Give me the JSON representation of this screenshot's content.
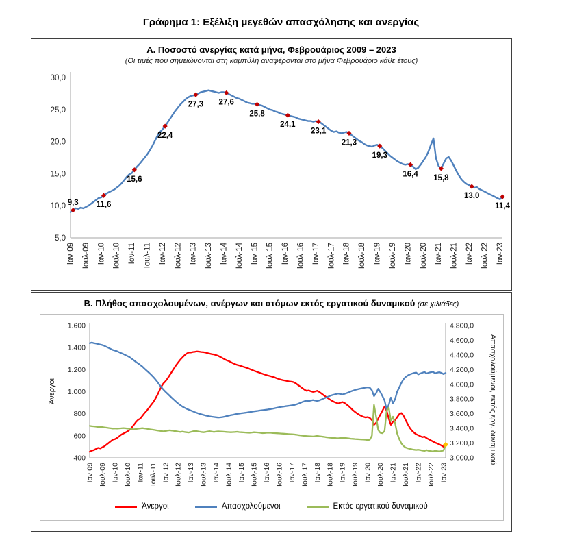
{
  "page": {
    "title": "Γράφημα 1: Εξέλιξη μεγεθών απασχόλησης και ανεργίας"
  },
  "panel_a": {
    "title": "Α. Ποσοστό ανεργίας κατά μήνα, Φεβρουάριος 2009 – 2023",
    "subtitle": "(Οι τιμές που σημειώνονται στη καμπύλη αναφέρονται στο μήνα Φεβρουάριο κάθε έτους)"
  },
  "panel_b": {
    "title": "Β. Πλήθος απασχολουμένων, ανέργων και ατόμων εκτός εργατικού δυναμικού",
    "unit_note": "(σε χιλιάδες)",
    "left_axis_title": "Άνεργοι",
    "right_axis_title": "Απασχολούμενοι, εκτός εργ. δυναμικού"
  },
  "legend": {
    "unemployed": "Άνεργοι",
    "employed": "Απασχολούμενοι",
    "outside": "Εκτός εργατικού δυναμικού"
  },
  "chart_data": [
    {
      "type": "line",
      "title": "Α. Ποσοστό ανεργίας κατά μήνα, Φεβρουάριος 2009 – 2023",
      "ylim": [
        5,
        30
      ],
      "y_tick_values": [
        5,
        10,
        15,
        20,
        25,
        30
      ],
      "y_tick_labels": [
        "5,0",
        "10,0",
        "15,0",
        "20,0",
        "25,0",
        "30,0"
      ],
      "x_tick_labels": [
        "Ιαν-09",
        "Ιουλ-09",
        "Ιαν-10",
        "Ιουλ-10",
        "Ιαν-11",
        "Ιουλ-11",
        "Ιαν-12",
        "Ιουλ-12",
        "Ιαν-13",
        "Ιουλ-13",
        "Ιαν-14",
        "Ιουλ-14",
        "Ιαν-15",
        "Ιουλ-15",
        "Ιαν-16",
        "Ιουλ-16",
        "Ιαν-17",
        "Ιουλ-17",
        "Ιαν-18",
        "Ιουλ-18",
        "Ιαν-19",
        "Ιουλ-19",
        "Ιαν-20",
        "Ιουλ-20",
        "Ιαν-21",
        "Ιουλ-21",
        "Ιαν-22",
        "Ιουλ-22",
        "Ιαν-23"
      ],
      "x_tick_indices": [
        0,
        6,
        12,
        18,
        24,
        30,
        36,
        42,
        48,
        54,
        60,
        66,
        72,
        78,
        84,
        90,
        96,
        102,
        108,
        114,
        120,
        126,
        132,
        138,
        144,
        150,
        156,
        162,
        168
      ],
      "marker_color": "#C00000",
      "series": [
        {
          "name": "Ποσοστό ανεργίας",
          "color": "#4F81BD",
          "values": [
            9.0,
            9.3,
            9.6,
            9.5,
            9.7,
            9.6,
            9.8,
            10.0,
            10.3,
            10.6,
            10.9,
            11.2,
            11.3,
            11.6,
            11.9,
            12.1,
            12.3,
            12.5,
            12.8,
            13.1,
            13.5,
            14.0,
            14.5,
            14.9,
            15.1,
            15.6,
            16.1,
            16.5,
            17.0,
            17.5,
            18.0,
            18.6,
            19.3,
            20.1,
            20.9,
            21.5,
            21.9,
            22.4,
            23.0,
            23.6,
            24.2,
            24.8,
            25.3,
            25.8,
            26.2,
            26.6,
            26.9,
            27.1,
            27.2,
            27.3,
            27.5,
            27.7,
            27.8,
            27.9,
            28.0,
            27.9,
            27.8,
            27.7,
            27.6,
            27.7,
            27.7,
            27.6,
            27.4,
            27.2,
            27.0,
            26.8,
            26.7,
            26.5,
            26.3,
            26.1,
            26.0,
            25.9,
            25.9,
            25.8,
            25.7,
            25.6,
            25.4,
            25.2,
            25.0,
            24.9,
            24.7,
            24.6,
            24.4,
            24.3,
            24.2,
            24.1,
            24.0,
            23.9,
            23.8,
            23.6,
            23.5,
            23.4,
            23.3,
            23.2,
            23.2,
            23.1,
            23.2,
            23.1,
            22.9,
            22.6,
            22.3,
            22.0,
            21.7,
            21.5,
            21.6,
            21.4,
            21.3,
            21.4,
            21.5,
            21.3,
            21.0,
            20.7,
            20.4,
            20.1,
            19.9,
            19.6,
            19.4,
            19.3,
            19.2,
            19.4,
            19.5,
            19.3,
            19.0,
            18.6,
            18.2,
            17.8,
            17.5,
            17.2,
            16.9,
            16.7,
            16.5,
            16.4,
            16.5,
            16.4,
            16.1,
            15.7,
            15.9,
            16.4,
            17.0,
            17.6,
            18.4,
            19.5,
            20.5,
            17.4,
            16.2,
            15.8,
            16.6,
            17.4,
            17.6,
            17.0,
            16.2,
            15.4,
            14.7,
            14.1,
            13.7,
            13.4,
            13.2,
            13.0,
            12.8,
            12.9,
            12.6,
            12.4,
            12.2,
            12.0,
            11.8,
            11.6,
            11.4,
            11.2,
            11.0,
            11.4
          ]
        }
      ],
      "annotations": [
        {
          "index": 1,
          "value": 9.3,
          "label": "9,3"
        },
        {
          "index": 13,
          "value": 11.6,
          "label": "11,6"
        },
        {
          "index": 25,
          "value": 15.6,
          "label": "15,6"
        },
        {
          "index": 37,
          "value": 22.4,
          "label": "22,4"
        },
        {
          "index": 49,
          "value": 27.3,
          "label": "27,3"
        },
        {
          "index": 61,
          "value": 27.6,
          "label": "27,6"
        },
        {
          "index": 73,
          "value": 25.8,
          "label": "25,8"
        },
        {
          "index": 85,
          "value": 24.1,
          "label": "24,1"
        },
        {
          "index": 97,
          "value": 23.1,
          "label": "23,1"
        },
        {
          "index": 109,
          "value": 21.3,
          "label": "21,3"
        },
        {
          "index": 121,
          "value": 19.3,
          "label": "19,3"
        },
        {
          "index": 133,
          "value": 16.4,
          "label": "16,4"
        },
        {
          "index": 145,
          "value": 15.8,
          "label": "15,8"
        },
        {
          "index": 157,
          "value": 13.0,
          "label": "13,0"
        },
        {
          "index": 169,
          "value": 11.4,
          "label": "11,4"
        }
      ]
    },
    {
      "type": "line",
      "title": "Β. Πλήθος απασχολουμένων, ανέργων και ατόμων εκτός εργατικού δυναμικού (σε χιλιάδες)",
      "left_ylim": [
        400,
        1600
      ],
      "left_tick_values": [
        400,
        600,
        800,
        1000,
        1200,
        1400,
        1600
      ],
      "left_tick_labels": [
        "400",
        "600",
        "800",
        "1.000",
        "1.200",
        "1.400",
        "1.600"
      ],
      "right_ylim": [
        3000,
        4800
      ],
      "right_tick_values": [
        3000,
        3200,
        3400,
        3600,
        3800,
        4000,
        4200,
        4400,
        4600,
        4800
      ],
      "right_tick_labels": [
        "3.000,0",
        "3.200,0",
        "3.400,0",
        "3.600,0",
        "3.800,0",
        "4.000,0",
        "4.200,0",
        "4.400,0",
        "4.600,0",
        "4.800,0"
      ],
      "x_tick_labels": [
        "Ιαν-09",
        "Ιουλ-09",
        "Ιαν-10",
        "Ιουλ-10",
        "Ιαν-11",
        "Ιουλ-11",
        "Ιαν-12",
        "Ιουλ-12",
        "Ιαν-13",
        "Ιουλ-13",
        "Ιαν-14",
        "Ιουλ-14",
        "Ιαν-15",
        "Ιουλ-15",
        "Ιαν-16",
        "Ιουλ-16",
        "Ιαν-17",
        "Ιουλ-17",
        "Ιαν-18",
        "Ιουλ-18",
        "Ιαν-19",
        "Ιουλ-19",
        "Ιαν-20",
        "Ιουλ-20",
        "Ιαν-21",
        "Ιουλ-21",
        "Ιαν-22",
        "Ιουλ-22",
        "Ιαν-23"
      ],
      "x_tick_indices": [
        0,
        6,
        12,
        18,
        24,
        30,
        36,
        42,
        48,
        54,
        60,
        66,
        72,
        78,
        84,
        90,
        96,
        102,
        108,
        114,
        120,
        126,
        132,
        138,
        144,
        150,
        156,
        162,
        168
      ],
      "end_marker_color": "#FFC000",
      "series": [
        {
          "name": "Άνεργοι",
          "axis": "left",
          "color": "#FF0000",
          "values": [
            455,
            465,
            470,
            480,
            490,
            485,
            495,
            505,
            520,
            535,
            550,
            565,
            570,
            580,
            595,
            610,
            620,
            630,
            640,
            655,
            675,
            700,
            725,
            745,
            755,
            780,
            805,
            825,
            850,
            875,
            900,
            930,
            965,
            1005,
            1045,
            1075,
            1095,
            1120,
            1150,
            1180,
            1210,
            1240,
            1265,
            1290,
            1310,
            1330,
            1345,
            1355,
            1355,
            1360,
            1362,
            1365,
            1363,
            1360,
            1358,
            1355,
            1350,
            1345,
            1340,
            1338,
            1332,
            1325,
            1315,
            1305,
            1295,
            1285,
            1278,
            1268,
            1258,
            1250,
            1243,
            1238,
            1232,
            1226,
            1220,
            1214,
            1206,
            1198,
            1190,
            1183,
            1176,
            1170,
            1163,
            1156,
            1150,
            1145,
            1140,
            1134,
            1128,
            1120,
            1114,
            1108,
            1103,
            1100,
            1096,
            1092,
            1090,
            1085,
            1074,
            1060,
            1046,
            1032,
            1018,
            1008,
            1012,
            1004,
            998,
            1002,
            1008,
            998,
            984,
            970,
            956,
            942,
            930,
            918,
            908,
            900,
            893,
            900,
            906,
            898,
            884,
            868,
            850,
            832,
            816,
            802,
            790,
            780,
            772,
            766,
            770,
            762,
            742,
            700,
            718,
            756,
            792,
            828,
            866,
            828,
            756,
            700,
            728,
            742,
            768,
            796,
            806,
            782,
            744,
            706,
            672,
            646,
            628,
            614,
            606,
            596,
            588,
            592,
            578,
            568,
            558,
            548,
            538,
            530,
            522,
            512,
            500,
            520
          ]
        },
        {
          "name": "Απασχολούμενοι",
          "axis": "right",
          "color": "#4F81BD",
          "values": [
            4560,
            4568,
            4560,
            4555,
            4548,
            4542,
            4534,
            4524,
            4510,
            4496,
            4482,
            4468,
            4460,
            4450,
            4436,
            4424,
            4412,
            4398,
            4384,
            4368,
            4348,
            4326,
            4304,
            4284,
            4264,
            4242,
            4214,
            4188,
            4162,
            4136,
            4106,
            4074,
            4038,
            4000,
            3962,
            3928,
            3898,
            3872,
            3844,
            3816,
            3790,
            3764,
            3740,
            3718,
            3698,
            3682,
            3668,
            3656,
            3644,
            3632,
            3620,
            3610,
            3600,
            3592,
            3584,
            3576,
            3570,
            3564,
            3560,
            3556,
            3552,
            3548,
            3550,
            3554,
            3560,
            3568,
            3574,
            3580,
            3586,
            3592,
            3598,
            3602,
            3606,
            3610,
            3614,
            3618,
            3622,
            3628,
            3632,
            3636,
            3640,
            3644,
            3648,
            3652,
            3656,
            3660,
            3664,
            3670,
            3676,
            3682,
            3688,
            3694,
            3698,
            3702,
            3706,
            3710,
            3714,
            3718,
            3726,
            3736,
            3748,
            3760,
            3770,
            3778,
            3772,
            3780,
            3786,
            3780,
            3774,
            3782,
            3794,
            3806,
            3818,
            3830,
            3842,
            3852,
            3860,
            3868,
            3874,
            3868,
            3862,
            3870,
            3880,
            3892,
            3904,
            3914,
            3924,
            3932,
            3938,
            3944,
            3950,
            3956,
            3960,
            3955,
            3920,
            3840,
            3880,
            3940,
            3895,
            3840,
            3780,
            3660,
            3720,
            3820,
            3740,
            3800,
            3900,
            3960,
            4020,
            4070,
            4100,
            4120,
            4135,
            4145,
            4155,
            4160,
            4135,
            4148,
            4158,
            4168,
            4148,
            4158,
            4165,
            4170,
            4150,
            4158,
            4165,
            4155,
            4140,
            4155
          ]
        },
        {
          "name": "Εκτός εργατικού δυναμικού",
          "axis": "right",
          "color": "#9BBB59",
          "values": [
            3435,
            3430,
            3428,
            3424,
            3420,
            3422,
            3418,
            3414,
            3410,
            3406,
            3402,
            3398,
            3400,
            3398,
            3400,
            3402,
            3405,
            3402,
            3398,
            3396,
            3392,
            3388,
            3392,
            3396,
            3400,
            3404,
            3400,
            3396,
            3390,
            3386,
            3382,
            3378,
            3372,
            3368,
            3364,
            3360,
            3364,
            3370,
            3374,
            3370,
            3366,
            3362,
            3356,
            3352,
            3356,
            3352,
            3348,
            3344,
            3352,
            3360,
            3366,
            3362,
            3356,
            3352,
            3348,
            3352,
            3358,
            3362,
            3356,
            3352,
            3356,
            3360,
            3358,
            3356,
            3354,
            3352,
            3350,
            3348,
            3350,
            3352,
            3354,
            3350,
            3348,
            3346,
            3344,
            3342,
            3340,
            3344,
            3348,
            3346,
            3344,
            3340,
            3336,
            3338,
            3340,
            3342,
            3340,
            3338,
            3336,
            3334,
            3332,
            3330,
            3328,
            3326,
            3324,
            3322,
            3320,
            3318,
            3314,
            3310,
            3306,
            3302,
            3298,
            3296,
            3294,
            3292,
            3290,
            3294,
            3298,
            3294,
            3290,
            3286,
            3282,
            3278,
            3274,
            3272,
            3270,
            3268,
            3266,
            3270,
            3272,
            3270,
            3268,
            3264,
            3260,
            3258,
            3256,
            3254,
            3252,
            3250,
            3248,
            3246,
            3242,
            3246,
            3300,
            3720,
            3560,
            3380,
            3340,
            3335,
            3365,
            3640,
            3685,
            3500,
            3560,
            3470,
            3330,
            3255,
            3195,
            3160,
            3140,
            3130,
            3122,
            3116,
            3110,
            3106,
            3110,
            3104,
            3098,
            3094,
            3104,
            3094,
            3090,
            3086,
            3096,
            3090,
            3086,
            3092,
            3100,
            3180
          ]
        }
      ]
    }
  ]
}
